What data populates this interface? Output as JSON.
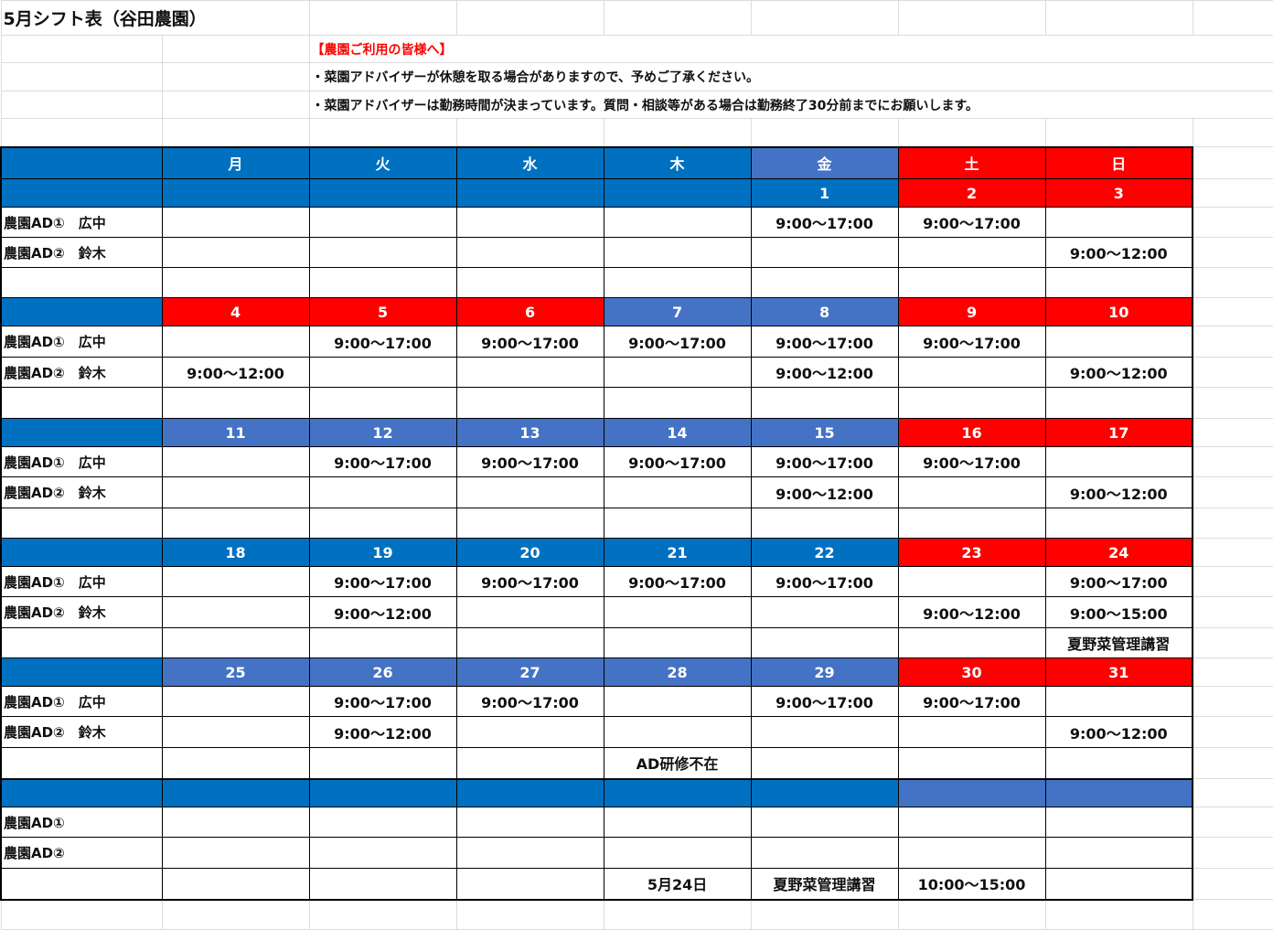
{
  "title": "5月シフト表（谷田農園）",
  "notice": {
    "heading": "【農園ご利用の皆様へ】",
    "line1": "・菜園アドバイザーが休憩を取る場合がありますので、予めご了承ください。",
    "line2": "・菜園アドバイザーは勤務時間が決まっています。質問・相談等がある場合は勤務終了30分前までにお願いします。"
  },
  "colors": {
    "blue": "#0070C0",
    "lightblue": "#4472C4",
    "red": "#FF0000",
    "gridline": "#dcdcdc"
  },
  "weekdays": [
    "月",
    "火",
    "水",
    "木",
    "金",
    "土",
    "日"
  ],
  "weekday_colors": [
    "blue",
    "blue",
    "blue",
    "blue",
    "lightblue",
    "red",
    "red"
  ],
  "labels": {
    "ad1": "農園AD①　広中",
    "ad2": "農園AD②　鈴木",
    "ad1_short": "農園AD①",
    "ad2_short": "農園AD②"
  },
  "weeks": [
    {
      "dates": [
        "",
        "",
        "",
        "",
        "1",
        "2",
        "3"
      ],
      "date_colors": [
        "blue",
        "blue",
        "blue",
        "blue",
        "blue",
        "red",
        "red"
      ],
      "ad1": [
        "",
        "",
        "",
        "",
        "9:00～17:00",
        "9:00～17:00",
        ""
      ],
      "ad2": [
        "",
        "",
        "",
        "",
        "",
        "",
        "9:00～12:00"
      ],
      "note": [
        "",
        "",
        "",
        "",
        "",
        "",
        ""
      ]
    },
    {
      "dates": [
        "4",
        "5",
        "6",
        "7",
        "8",
        "9",
        "10"
      ],
      "date_colors": [
        "red",
        "red",
        "red",
        "lightblue",
        "lightblue",
        "red",
        "red"
      ],
      "ad1": [
        "",
        "9:00～17:00",
        "9:00～17:00",
        "9:00～17:00",
        "9:00～17:00",
        "9:00～17:00",
        ""
      ],
      "ad2": [
        "9:00～12:00",
        "",
        "",
        "",
        "9:00～12:00",
        "",
        "9:00～12:00"
      ],
      "note": [
        "",
        "",
        "",
        "",
        "",
        "",
        ""
      ]
    },
    {
      "dates": [
        "11",
        "12",
        "13",
        "14",
        "15",
        "16",
        "17"
      ],
      "date_colors": [
        "lightblue",
        "lightblue",
        "lightblue",
        "lightblue",
        "lightblue",
        "red",
        "red"
      ],
      "ad1": [
        "",
        "9:00～17:00",
        "9:00～17:00",
        "9:00～17:00",
        "9:00～17:00",
        "9:00～17:00",
        ""
      ],
      "ad2": [
        "",
        "",
        "",
        "",
        "9:00～12:00",
        "",
        "9:00～12:00"
      ],
      "note": [
        "",
        "",
        "",
        "",
        "",
        "",
        ""
      ]
    },
    {
      "dates": [
        "18",
        "19",
        "20",
        "21",
        "22",
        "23",
        "24"
      ],
      "date_colors": [
        "blue",
        "blue",
        "blue",
        "blue",
        "blue",
        "red",
        "red"
      ],
      "ad1": [
        "",
        "9:00～17:00",
        "9:00～17:00",
        "9:00～17:00",
        "9:00～17:00",
        "",
        "9:00～17:00"
      ],
      "ad2": [
        "",
        "9:00～12:00",
        "",
        "",
        "",
        "9:00～12:00",
        "9:00～15:00"
      ],
      "note": [
        "",
        "",
        "",
        "",
        "",
        "",
        "夏野菜管理講習"
      ]
    },
    {
      "dates": [
        "25",
        "26",
        "27",
        "28",
        "29",
        "30",
        "31"
      ],
      "date_colors": [
        "lightblue",
        "lightblue",
        "lightblue",
        "lightblue",
        "lightblue",
        "red",
        "red"
      ],
      "ad1": [
        "",
        "9:00～17:00",
        "9:00～17:00",
        "",
        "9:00～17:00",
        "9:00～17:00",
        ""
      ],
      "ad2": [
        "",
        "9:00～12:00",
        "",
        "",
        "",
        "",
        "9:00～12:00"
      ],
      "note": [
        "",
        "",
        "",
        "AD研修不在",
        "",
        "",
        ""
      ]
    }
  ],
  "extra": {
    "header_colors": [
      "blue",
      "blue",
      "blue",
      "blue",
      "blue",
      "lightblue",
      "lightblue"
    ],
    "note": [
      "",
      "",
      "",
      "5月24日",
      "夏野菜管理講習",
      "10:00～15:00",
      ""
    ]
  }
}
